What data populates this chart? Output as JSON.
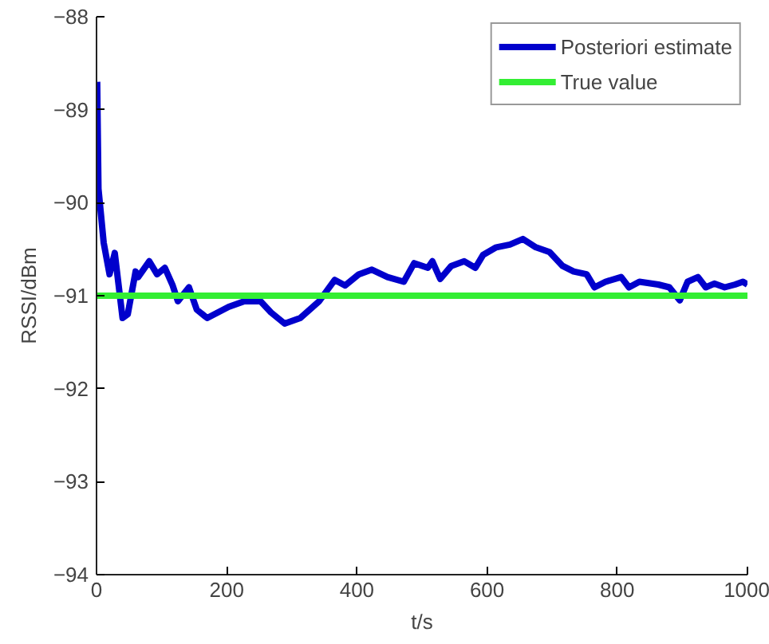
{
  "chart_data": {
    "type": "line",
    "xlabel": "t/s",
    "ylabel": "RSSI/dBm",
    "xlim": [
      0,
      1000
    ],
    "ylim": [
      -94,
      -88
    ],
    "xticks": [
      0,
      200,
      400,
      600,
      800,
      1000
    ],
    "yticks": [
      -94,
      -93,
      -92,
      -91,
      -90,
      -89,
      -88
    ],
    "grid": false,
    "legend": "top right",
    "series": [
      {
        "name": "Posteriori estimate",
        "color": "#0000cc",
        "x": [
          1,
          3,
          11,
          20,
          28,
          40,
          48,
          60,
          64,
          81,
          93,
          105,
          117,
          125,
          142,
          154,
          170,
          203,
          227,
          252,
          268,
          289,
          313,
          342,
          366,
          382,
          403,
          423,
          447,
          472,
          488,
          509,
          516,
          528,
          545,
          565,
          582,
          594,
          614,
          635,
          655,
          675,
          696,
          716,
          733,
          753,
          765,
          782,
          806,
          818,
          834,
          863,
          880,
          896,
          908,
          924,
          936,
          949,
          965,
          981,
          993,
          1000
        ],
        "values": [
          -88.7,
          -89.85,
          -90.43,
          -90.77,
          -90.54,
          -91.24,
          -91.2,
          -90.74,
          -90.8,
          -90.63,
          -90.77,
          -90.7,
          -90.89,
          -91.06,
          -90.91,
          -91.15,
          -91.24,
          -91.12,
          -91.06,
          -91.06,
          -91.18,
          -91.3,
          -91.24,
          -91.06,
          -90.83,
          -90.89,
          -90.77,
          -90.72,
          -90.8,
          -90.85,
          -90.65,
          -90.7,
          -90.63,
          -90.82,
          -90.68,
          -90.63,
          -90.7,
          -90.56,
          -90.48,
          -90.45,
          -90.39,
          -90.48,
          -90.53,
          -90.68,
          -90.74,
          -90.77,
          -90.91,
          -90.85,
          -90.8,
          -90.91,
          -90.85,
          -90.88,
          -90.91,
          -91.05,
          -90.85,
          -90.8,
          -90.91,
          -90.87,
          -90.91,
          -90.88,
          -90.85,
          -90.88
        ]
      },
      {
        "name": "True value",
        "color": "#33ee33",
        "x": [
          0,
          1000
        ],
        "values": [
          -91,
          -91
        ]
      }
    ]
  }
}
